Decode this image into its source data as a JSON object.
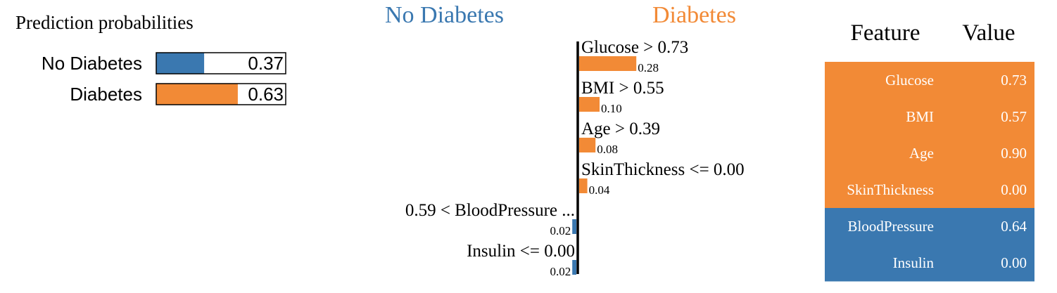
{
  "colors": {
    "negative": "#3a78b0",
    "positive": "#f28a36"
  },
  "probabilities": {
    "title": "Prediction probabilities",
    "items": [
      {
        "label": "No Diabetes",
        "value": 0.37,
        "display": "0.37",
        "color": "#3a78b0"
      },
      {
        "label": "Diabetes",
        "value": 0.63,
        "display": "0.63",
        "color": "#f28a36"
      }
    ]
  },
  "explanation": {
    "negative_title": "No Diabetes",
    "positive_title": "Diabetes"
  },
  "chart_data": {
    "type": "bar",
    "orientation": "horizontal",
    "categories": [
      "Glucose > 0.73",
      "BMI > 0.55",
      "Age > 0.39",
      "SkinThickness <= 0.00",
      "0.59 < BloodPressure ...",
      "Insulin <= 0.00"
    ],
    "values": [
      0.28,
      0.1,
      0.08,
      0.04,
      -0.02,
      -0.02
    ],
    "value_labels": [
      "0.28",
      "0.10",
      "0.08",
      "0.04",
      "0.02",
      "0.02"
    ]
  },
  "feature_table": {
    "headers": {
      "feature": "Feature",
      "value": "Value"
    },
    "rows": [
      {
        "feature": "Glucose",
        "value": "0.73",
        "class": "positive"
      },
      {
        "feature": "BMI",
        "value": "0.57",
        "class": "positive"
      },
      {
        "feature": "Age",
        "value": "0.90",
        "class": "positive"
      },
      {
        "feature": "SkinThickness",
        "value": "0.00",
        "class": "positive"
      },
      {
        "feature": "BloodPressure",
        "value": "0.64",
        "class": "negative"
      },
      {
        "feature": "Insulin",
        "value": "0.00",
        "class": "negative"
      }
    ]
  }
}
